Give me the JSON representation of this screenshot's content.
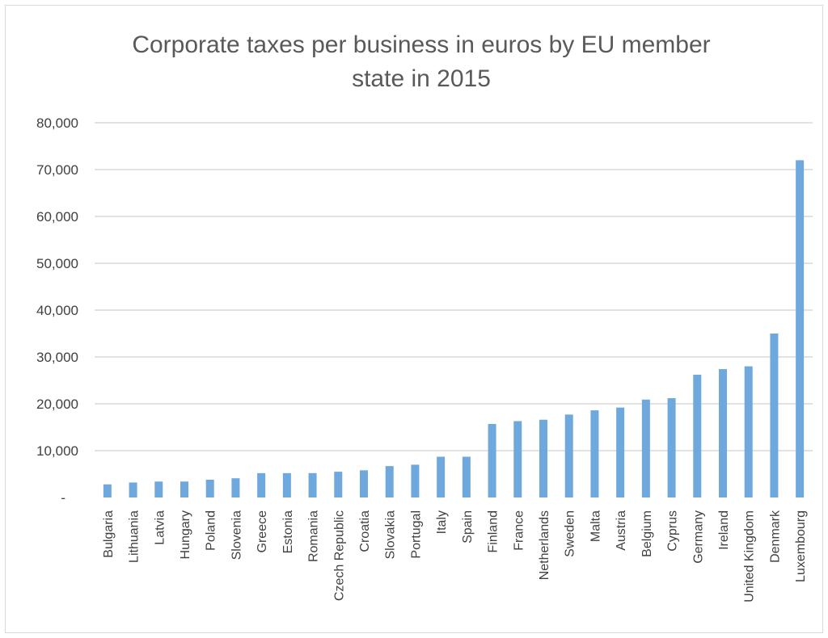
{
  "chart_data": {
    "type": "bar",
    "title_lines": [
      "Corporate taxes per business in euros by EU member",
      "state in 2015"
    ],
    "xlabel": "",
    "ylabel": "",
    "ylim": [
      0,
      80000
    ],
    "y_ticks": [
      0,
      10000,
      20000,
      30000,
      40000,
      50000,
      60000,
      70000,
      80000
    ],
    "y_tick_labels": [
      "-",
      "10,000",
      "20,000",
      "30,000",
      "40,000",
      "50,000",
      "60,000",
      "70,000",
      "80,000"
    ],
    "grid": true,
    "legend": "none",
    "bar_color": "#6fa8dc",
    "categories": [
      "Bulgaria",
      "Lithuania",
      "Latvia",
      "Hungary",
      "Poland",
      "Slovenia",
      "Greece",
      "Estonia",
      "Romania",
      "Czech Republic",
      "Croatia",
      "Slovakia",
      "Portugal",
      "Italy",
      "Spain",
      "Finland",
      "France",
      "Netherlands",
      "Sweden",
      "Malta",
      "Austria",
      "Belgium",
      "Cyprus",
      "Germany",
      "Ireland",
      "United Kingdom",
      "Denmark",
      "Luxembourg"
    ],
    "values": [
      2800,
      3200,
      3400,
      3400,
      3800,
      4100,
      5200,
      5200,
      5200,
      5500,
      5800,
      6700,
      7000,
      8700,
      8700,
      15700,
      16300,
      16600,
      17700,
      18600,
      19200,
      20900,
      21200,
      26200,
      27400,
      28000,
      35000,
      72000
    ]
  }
}
